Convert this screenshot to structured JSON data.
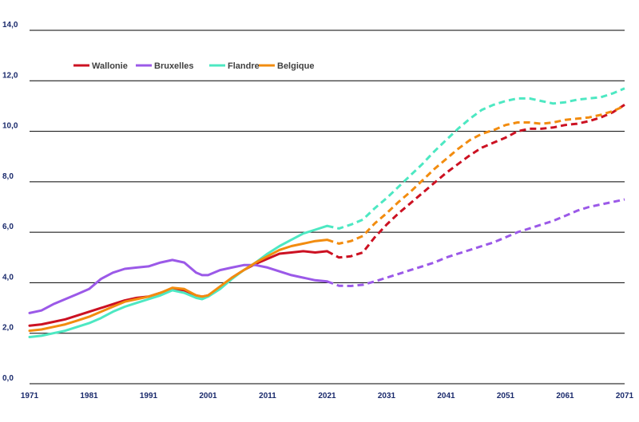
{
  "chart_data": {
    "type": "line",
    "title": "",
    "xlabel": "",
    "ylabel": "",
    "xlim": [
      1971,
      2071
    ],
    "ylim": [
      0,
      14
    ],
    "grid": "horizontal",
    "legend_position": "top-left",
    "y_ticks": [
      "0,0",
      "2,0",
      "4,0",
      "6,0",
      "8,0",
      "10,0",
      "12,0",
      "14,0"
    ],
    "x_ticks": [
      "1971",
      "1981",
      "1991",
      "2001",
      "2011",
      "2021",
      "2031",
      "2041",
      "2051",
      "2061",
      "2071"
    ],
    "series": [
      {
        "name": "Wallonie",
        "color": "#cc1122",
        "observed": [
          [
            1971,
            2.3
          ],
          [
            1973,
            2.35
          ],
          [
            1975,
            2.45
          ],
          [
            1977,
            2.55
          ],
          [
            1979,
            2.7
          ],
          [
            1981,
            2.85
          ],
          [
            1983,
            3.0
          ],
          [
            1985,
            3.15
          ],
          [
            1987,
            3.3
          ],
          [
            1989,
            3.4
          ],
          [
            1991,
            3.45
          ],
          [
            1993,
            3.6
          ],
          [
            1995,
            3.75
          ],
          [
            1997,
            3.7
          ],
          [
            1999,
            3.5
          ],
          [
            2000,
            3.45
          ],
          [
            2001,
            3.5
          ],
          [
            2003,
            3.8
          ],
          [
            2005,
            4.2
          ],
          [
            2007,
            4.5
          ],
          [
            2009,
            4.75
          ],
          [
            2011,
            4.95
          ],
          [
            2013,
            5.15
          ],
          [
            2015,
            5.2
          ],
          [
            2017,
            5.25
          ],
          [
            2019,
            5.2
          ],
          [
            2021,
            5.25
          ]
        ],
        "projected": [
          [
            2021,
            5.25
          ],
          [
            2023,
            5.0
          ],
          [
            2025,
            5.05
          ],
          [
            2027,
            5.2
          ],
          [
            2029,
            5.8
          ],
          [
            2031,
            6.3
          ],
          [
            2033,
            6.75
          ],
          [
            2035,
            7.15
          ],
          [
            2037,
            7.55
          ],
          [
            2039,
            7.95
          ],
          [
            2041,
            8.35
          ],
          [
            2043,
            8.7
          ],
          [
            2045,
            9.05
          ],
          [
            2047,
            9.35
          ],
          [
            2049,
            9.55
          ],
          [
            2051,
            9.75
          ],
          [
            2053,
            10.0
          ],
          [
            2055,
            10.1
          ],
          [
            2057,
            10.1
          ],
          [
            2059,
            10.15
          ],
          [
            2061,
            10.25
          ],
          [
            2063,
            10.3
          ],
          [
            2065,
            10.4
          ],
          [
            2067,
            10.55
          ],
          [
            2069,
            10.75
          ],
          [
            2071,
            11.05
          ]
        ]
      },
      {
        "name": "Bruxelles",
        "color": "#9b59e8",
        "observed": [
          [
            1971,
            2.8
          ],
          [
            1973,
            2.9
          ],
          [
            1975,
            3.15
          ],
          [
            1977,
            3.35
          ],
          [
            1979,
            3.55
          ],
          [
            1981,
            3.75
          ],
          [
            1983,
            4.15
          ],
          [
            1985,
            4.4
          ],
          [
            1987,
            4.55
          ],
          [
            1989,
            4.6
          ],
          [
            1991,
            4.65
          ],
          [
            1993,
            4.8
          ],
          [
            1995,
            4.9
          ],
          [
            1997,
            4.8
          ],
          [
            1999,
            4.4
          ],
          [
            2000,
            4.3
          ],
          [
            2001,
            4.3
          ],
          [
            2003,
            4.5
          ],
          [
            2005,
            4.6
          ],
          [
            2007,
            4.7
          ],
          [
            2009,
            4.7
          ],
          [
            2011,
            4.6
          ],
          [
            2013,
            4.45
          ],
          [
            2015,
            4.3
          ],
          [
            2017,
            4.2
          ],
          [
            2019,
            4.1
          ],
          [
            2021,
            4.05
          ]
        ],
        "projected": [
          [
            2021,
            4.05
          ],
          [
            2023,
            3.88
          ],
          [
            2025,
            3.87
          ],
          [
            2027,
            3.92
          ],
          [
            2029,
            4.05
          ],
          [
            2031,
            4.2
          ],
          [
            2033,
            4.35
          ],
          [
            2035,
            4.5
          ],
          [
            2037,
            4.65
          ],
          [
            2039,
            4.8
          ],
          [
            2041,
            5.0
          ],
          [
            2043,
            5.15
          ],
          [
            2045,
            5.3
          ],
          [
            2047,
            5.45
          ],
          [
            2049,
            5.6
          ],
          [
            2051,
            5.8
          ],
          [
            2053,
            6.0
          ],
          [
            2055,
            6.15
          ],
          [
            2057,
            6.3
          ],
          [
            2059,
            6.45
          ],
          [
            2061,
            6.65
          ],
          [
            2063,
            6.85
          ],
          [
            2065,
            7.0
          ],
          [
            2067,
            7.1
          ],
          [
            2069,
            7.2
          ],
          [
            2071,
            7.3
          ]
        ]
      },
      {
        "name": "Flandre",
        "color": "#4de8c2",
        "observed": [
          [
            1971,
            1.85
          ],
          [
            1973,
            1.9
          ],
          [
            1975,
            2.0
          ],
          [
            1977,
            2.1
          ],
          [
            1979,
            2.25
          ],
          [
            1981,
            2.4
          ],
          [
            1983,
            2.6
          ],
          [
            1985,
            2.85
          ],
          [
            1987,
            3.05
          ],
          [
            1989,
            3.2
          ],
          [
            1991,
            3.35
          ],
          [
            1993,
            3.5
          ],
          [
            1995,
            3.7
          ],
          [
            1997,
            3.6
          ],
          [
            1999,
            3.4
          ],
          [
            2000,
            3.35
          ],
          [
            2001,
            3.45
          ],
          [
            2003,
            3.75
          ],
          [
            2005,
            4.15
          ],
          [
            2007,
            4.5
          ],
          [
            2009,
            4.8
          ],
          [
            2011,
            5.15
          ],
          [
            2013,
            5.45
          ],
          [
            2015,
            5.7
          ],
          [
            2017,
            5.95
          ],
          [
            2019,
            6.1
          ],
          [
            2021,
            6.25
          ]
        ],
        "projected": [
          [
            2021,
            6.25
          ],
          [
            2023,
            6.15
          ],
          [
            2025,
            6.3
          ],
          [
            2027,
            6.5
          ],
          [
            2029,
            6.95
          ],
          [
            2031,
            7.35
          ],
          [
            2033,
            7.8
          ],
          [
            2035,
            8.25
          ],
          [
            2037,
            8.7
          ],
          [
            2039,
            9.2
          ],
          [
            2041,
            9.65
          ],
          [
            2043,
            10.1
          ],
          [
            2045,
            10.5
          ],
          [
            2047,
            10.85
          ],
          [
            2049,
            11.05
          ],
          [
            2051,
            11.2
          ],
          [
            2053,
            11.3
          ],
          [
            2055,
            11.3
          ],
          [
            2057,
            11.2
          ],
          [
            2059,
            11.1
          ],
          [
            2061,
            11.15
          ],
          [
            2063,
            11.25
          ],
          [
            2065,
            11.3
          ],
          [
            2067,
            11.35
          ],
          [
            2069,
            11.5
          ],
          [
            2071,
            11.7
          ]
        ]
      },
      {
        "name": "Belgique",
        "color": "#f28c0f",
        "observed": [
          [
            1971,
            2.1
          ],
          [
            1973,
            2.15
          ],
          [
            1975,
            2.25
          ],
          [
            1977,
            2.35
          ],
          [
            1979,
            2.5
          ],
          [
            1981,
            2.65
          ],
          [
            1983,
            2.85
          ],
          [
            1985,
            3.05
          ],
          [
            1987,
            3.25
          ],
          [
            1989,
            3.35
          ],
          [
            1991,
            3.45
          ],
          [
            1993,
            3.6
          ],
          [
            1995,
            3.8
          ],
          [
            1997,
            3.75
          ],
          [
            1999,
            3.5
          ],
          [
            2000,
            3.45
          ],
          [
            2001,
            3.5
          ],
          [
            2003,
            3.85
          ],
          [
            2005,
            4.2
          ],
          [
            2007,
            4.5
          ],
          [
            2009,
            4.8
          ],
          [
            2011,
            5.05
          ],
          [
            2013,
            5.3
          ],
          [
            2015,
            5.45
          ],
          [
            2017,
            5.55
          ],
          [
            2019,
            5.65
          ],
          [
            2021,
            5.7
          ]
        ],
        "projected": [
          [
            2021,
            5.7
          ],
          [
            2023,
            5.55
          ],
          [
            2025,
            5.65
          ],
          [
            2027,
            5.85
          ],
          [
            2029,
            6.35
          ],
          [
            2031,
            6.75
          ],
          [
            2033,
            7.2
          ],
          [
            2035,
            7.6
          ],
          [
            2037,
            8.05
          ],
          [
            2039,
            8.5
          ],
          [
            2041,
            8.9
          ],
          [
            2043,
            9.3
          ],
          [
            2045,
            9.65
          ],
          [
            2047,
            9.9
          ],
          [
            2049,
            10.05
          ],
          [
            2051,
            10.25
          ],
          [
            2053,
            10.35
          ],
          [
            2055,
            10.35
          ],
          [
            2057,
            10.3
          ],
          [
            2059,
            10.35
          ],
          [
            2061,
            10.45
          ],
          [
            2063,
            10.5
          ],
          [
            2065,
            10.55
          ],
          [
            2067,
            10.65
          ],
          [
            2069,
            10.8
          ],
          [
            2071,
            11.0
          ]
        ]
      }
    ]
  }
}
